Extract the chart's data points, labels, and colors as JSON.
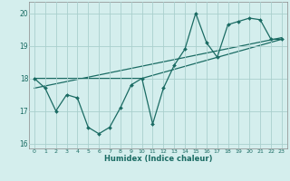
{
  "title": "",
  "xlabel": "Humidex (Indice chaleur)",
  "ylabel": "",
  "background_color": "#d4eeed",
  "grid_color": "#aacfcd",
  "line_color": "#1a6b63",
  "xlim": [
    -0.5,
    23.5
  ],
  "ylim": [
    15.85,
    20.35
  ],
  "yticks": [
    16,
    17,
    18,
    19,
    20
  ],
  "xticks": [
    0,
    1,
    2,
    3,
    4,
    5,
    6,
    7,
    8,
    9,
    10,
    11,
    12,
    13,
    14,
    15,
    16,
    17,
    18,
    19,
    20,
    21,
    22,
    23
  ],
  "series1_x": [
    0,
    1,
    2,
    3,
    4,
    5,
    6,
    7,
    8,
    9,
    10,
    11,
    12,
    13,
    14,
    15,
    16,
    17,
    18,
    19,
    20,
    21,
    22,
    23
  ],
  "series1_y": [
    18.0,
    17.7,
    17.0,
    17.5,
    17.4,
    16.5,
    16.3,
    16.5,
    17.1,
    17.8,
    18.0,
    16.6,
    17.7,
    18.4,
    18.9,
    20.0,
    19.1,
    18.65,
    19.65,
    19.75,
    19.85,
    19.8,
    19.2,
    19.2
  ],
  "series2_x": [
    0,
    23
  ],
  "series2_y": [
    17.7,
    19.25
  ],
  "series3_x": [
    0,
    10,
    23
  ],
  "series3_y": [
    18.0,
    18.0,
    19.2
  ]
}
